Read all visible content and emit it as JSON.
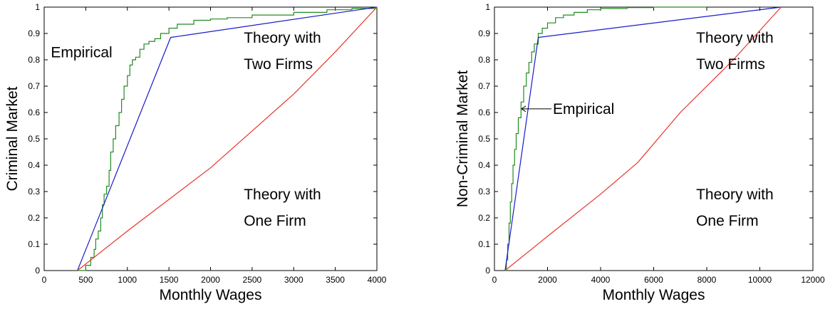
{
  "chart_data": [
    {
      "type": "line",
      "title": "",
      "xlabel": "Monthly Wages",
      "ylabel": "Criminal Market",
      "xlim": [
        0,
        4000
      ],
      "ylim": [
        0,
        1
      ],
      "xticks": [
        0,
        500,
        1000,
        1500,
        2000,
        2500,
        3000,
        3500,
        4000
      ],
      "yticks": [
        0,
        0.1,
        0.2,
        0.3,
        0.4,
        0.5,
        0.6,
        0.7,
        0.8,
        0.9,
        1
      ],
      "grid": false,
      "colors": {
        "empirical": "#228b22",
        "two_firms": "#1a1acc",
        "one_firm": "#e8352b"
      },
      "series": [
        {
          "key": "empirical",
          "step": true,
          "x": [
            400,
            500,
            560,
            600,
            620,
            650,
            680,
            700,
            720,
            750,
            780,
            800,
            830,
            860,
            900,
            930,
            960,
            1000,
            1030,
            1060,
            1100,
            1150,
            1200,
            1260,
            1330,
            1400,
            1500,
            1600,
            1800,
            2000,
            2200,
            2500,
            3000,
            3400,
            3700,
            4000
          ],
          "y": [
            0,
            0.02,
            0.05,
            0.08,
            0.12,
            0.15,
            0.2,
            0.25,
            0.29,
            0.32,
            0.38,
            0.45,
            0.5,
            0.55,
            0.6,
            0.65,
            0.7,
            0.74,
            0.78,
            0.8,
            0.81,
            0.84,
            0.86,
            0.87,
            0.88,
            0.9,
            0.92,
            0.935,
            0.95,
            0.955,
            0.96,
            0.97,
            0.98,
            0.99,
            0.995,
            1
          ]
        },
        {
          "key": "two_firms",
          "x": [
            400,
            1520,
            4000
          ],
          "y": [
            0,
            0.885,
            1
          ]
        },
        {
          "key": "one_firm",
          "x": [
            400,
            1000,
            1500,
            2000,
            2500,
            3000,
            3500,
            4000
          ],
          "y": [
            0,
            0.15,
            0.27,
            0.39,
            0.53,
            0.67,
            0.83,
            1
          ]
        }
      ],
      "annotations": [
        {
          "lines": [
            "Empirical"
          ],
          "x": 80,
          "y": 0.81
        },
        {
          "lines": [
            "Theory with",
            "Two Firms"
          ],
          "x": 2400,
          "y": 0.865
        },
        {
          "lines": [
            "Theory with",
            "One Firm"
          ],
          "x": 2400,
          "y": 0.27
        }
      ]
    },
    {
      "type": "line",
      "title": "",
      "xlabel": "Monthly Wages",
      "ylabel": "Non-Criminal Market",
      "xlim": [
        0,
        12000
      ],
      "ylim": [
        0,
        1
      ],
      "xticks": [
        0,
        2000,
        4000,
        6000,
        8000,
        10000,
        12000
      ],
      "yticks": [
        0,
        0.1,
        0.2,
        0.3,
        0.4,
        0.5,
        0.6,
        0.7,
        0.8,
        0.9,
        1
      ],
      "grid": false,
      "colors": {
        "empirical": "#228b22",
        "two_firms": "#1a1acc",
        "one_firm": "#e8352b"
      },
      "series": [
        {
          "key": "empirical",
          "step": true,
          "x": [
            400,
            450,
            500,
            550,
            600,
            650,
            700,
            760,
            820,
            900,
            1000,
            1100,
            1200,
            1300,
            1400,
            1500,
            1650,
            1800,
            2000,
            2300,
            2600,
            3000,
            3500,
            4000,
            5000,
            6000,
            8000
          ],
          "y": [
            0,
            0.04,
            0.1,
            0.18,
            0.26,
            0.33,
            0.4,
            0.46,
            0.52,
            0.58,
            0.64,
            0.7,
            0.75,
            0.79,
            0.83,
            0.86,
            0.9,
            0.92,
            0.94,
            0.96,
            0.97,
            0.98,
            0.99,
            0.995,
            0.998,
            1,
            1
          ]
        },
        {
          "key": "two_firms",
          "x": [
            400,
            1650,
            10800
          ],
          "y": [
            0,
            0.885,
            1
          ]
        },
        {
          "key": "one_firm",
          "x": [
            400,
            2000,
            4000,
            5400,
            7000,
            9000,
            10800
          ],
          "y": [
            0,
            0.13,
            0.29,
            0.41,
            0.6,
            0.8,
            1
          ]
        }
      ],
      "annotations": [
        {
          "lines": [
            "Empirical"
          ],
          "x": 2200,
          "y": 0.595
        },
        {
          "lines": [
            "Theory with",
            "Two Firms"
          ],
          "x": 7600,
          "y": 0.865
        },
        {
          "lines": [
            "Theory with",
            "One Firm"
          ],
          "x": 7600,
          "y": 0.27
        }
      ],
      "arrow": {
        "from": [
          2150,
          0.595
        ],
        "to": [
          1020,
          0.595
        ]
      }
    }
  ]
}
